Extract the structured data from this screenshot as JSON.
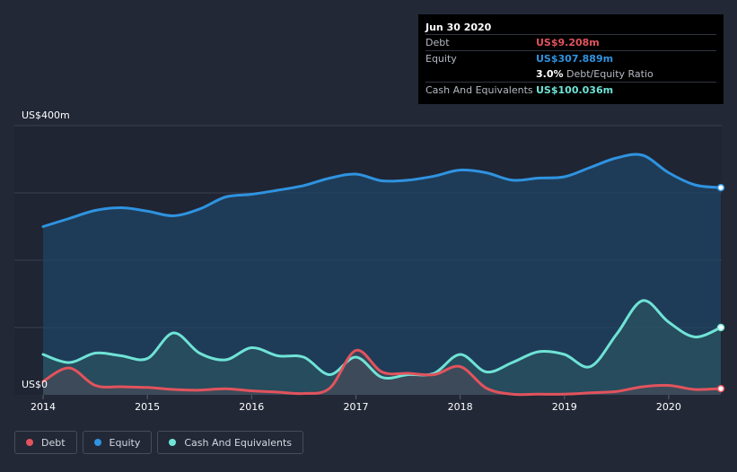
{
  "tooltip": {
    "date": "Jun 30 2020",
    "rows": [
      {
        "label": "Debt",
        "value": "US$9.208m",
        "color": "#e2535d"
      },
      {
        "label": "Equity",
        "value": "US$307.889m",
        "color": "#2f93e0"
      },
      {
        "label": "",
        "value": "3.0%",
        "suffix": "Debt/Equity Ratio",
        "color": "#ffffff"
      },
      {
        "label": "Cash And Equivalents",
        "value": "US$100.036m",
        "color": "#6fe3d6"
      }
    ]
  },
  "legend": [
    {
      "label": "Debt",
      "color": "#e2535d"
    },
    {
      "label": "Equity",
      "color": "#2f93e0"
    },
    {
      "label": "Cash And Equivalents",
      "color": "#6fe3d6"
    }
  ],
  "chart_data": {
    "type": "area",
    "ylim": [
      0,
      400
    ],
    "y_tick_labels": [
      {
        "value": 400,
        "label": "US$400m"
      },
      {
        "value": 0,
        "label": "US$0"
      }
    ],
    "x_ticks": [
      2014,
      2015,
      2016,
      2017,
      2018,
      2019,
      2020
    ],
    "xlim": [
      2014.0,
      2020.5
    ],
    "colors": {
      "debt": "#e2535d",
      "equity": "#2f93e0",
      "cash": "#6fe3d6"
    },
    "series": [
      {
        "name": "Equity",
        "points": [
          [
            2014.0,
            250
          ],
          [
            2014.25,
            262
          ],
          [
            2014.5,
            274
          ],
          [
            2014.75,
            278
          ],
          [
            2015.0,
            273
          ],
          [
            2015.25,
            266
          ],
          [
            2015.5,
            276
          ],
          [
            2015.75,
            294
          ],
          [
            2016.0,
            298
          ],
          [
            2016.25,
            304
          ],
          [
            2016.5,
            311
          ],
          [
            2016.75,
            322
          ],
          [
            2017.0,
            328
          ],
          [
            2017.25,
            318
          ],
          [
            2017.5,
            319
          ],
          [
            2017.75,
            325
          ],
          [
            2018.0,
            334
          ],
          [
            2018.25,
            330
          ],
          [
            2018.5,
            319
          ],
          [
            2018.75,
            322
          ],
          [
            2019.0,
            324
          ],
          [
            2019.25,
            338
          ],
          [
            2019.5,
            352
          ],
          [
            2019.75,
            356
          ],
          [
            2020.0,
            330
          ],
          [
            2020.25,
            312
          ],
          [
            2020.5,
            307.889
          ]
        ]
      },
      {
        "name": "Cash And Equivalents",
        "points": [
          [
            2014.0,
            60
          ],
          [
            2014.25,
            48
          ],
          [
            2014.5,
            62
          ],
          [
            2014.75,
            58
          ],
          [
            2015.0,
            54
          ],
          [
            2015.25,
            92
          ],
          [
            2015.5,
            62
          ],
          [
            2015.75,
            52
          ],
          [
            2016.0,
            70
          ],
          [
            2016.25,
            58
          ],
          [
            2016.5,
            56
          ],
          [
            2016.75,
            30
          ],
          [
            2017.0,
            56
          ],
          [
            2017.25,
            26
          ],
          [
            2017.5,
            30
          ],
          [
            2017.75,
            32
          ],
          [
            2018.0,
            60
          ],
          [
            2018.25,
            34
          ],
          [
            2018.5,
            48
          ],
          [
            2018.75,
            64
          ],
          [
            2019.0,
            60
          ],
          [
            2019.25,
            42
          ],
          [
            2019.5,
            90
          ],
          [
            2019.75,
            140
          ],
          [
            2020.0,
            108
          ],
          [
            2020.25,
            86
          ],
          [
            2020.5,
            100.036
          ]
        ]
      },
      {
        "name": "Debt",
        "points": [
          [
            2014.0,
            20
          ],
          [
            2014.25,
            40
          ],
          [
            2014.5,
            14
          ],
          [
            2014.75,
            12
          ],
          [
            2015.0,
            11
          ],
          [
            2015.25,
            8
          ],
          [
            2015.5,
            7
          ],
          [
            2015.75,
            9
          ],
          [
            2016.0,
            6
          ],
          [
            2016.25,
            4
          ],
          [
            2016.5,
            2
          ],
          [
            2016.75,
            10
          ],
          [
            2017.0,
            66
          ],
          [
            2017.25,
            34
          ],
          [
            2017.5,
            32
          ],
          [
            2017.75,
            30
          ],
          [
            2018.0,
            42
          ],
          [
            2018.25,
            10
          ],
          [
            2018.5,
            1
          ],
          [
            2018.75,
            1
          ],
          [
            2019.0,
            1
          ],
          [
            2019.25,
            3
          ],
          [
            2019.5,
            5
          ],
          [
            2019.75,
            12
          ],
          [
            2020.0,
            14
          ],
          [
            2020.25,
            8
          ],
          [
            2020.5,
            9.208
          ]
        ]
      }
    ]
  }
}
